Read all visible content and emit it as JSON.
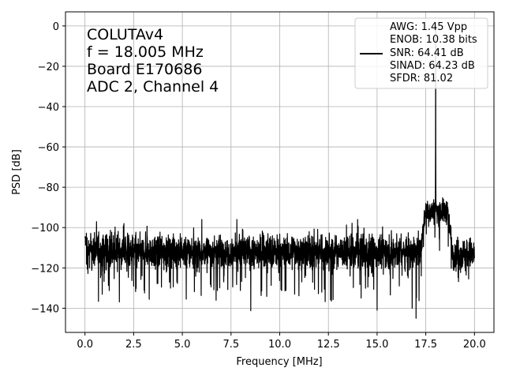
{
  "chart_data": {
    "type": "line",
    "title": "",
    "xlabel": "Frequency [MHz]",
    "ylabel": "PSD [dB]",
    "xlim": [
      -1.0,
      21.0
    ],
    "ylim": [
      -152,
      7
    ],
    "x_ticks": [
      0.0,
      2.5,
      5.0,
      7.5,
      10.0,
      12.5,
      15.0,
      17.5,
      20.0
    ],
    "x_tick_labels": [
      "0.0",
      "2.5",
      "5.0",
      "7.5",
      "10.0",
      "12.5",
      "15.0",
      "17.5",
      "20.0"
    ],
    "y_ticks": [
      0,
      -20,
      -40,
      -60,
      -80,
      -100,
      -120,
      -140
    ],
    "y_tick_labels": [
      "0",
      "−20",
      "−40",
      "−60",
      "−80",
      "−100",
      "−120",
      "−140"
    ],
    "grid": true,
    "line_color": "#000000",
    "annotation": {
      "lines": [
        "COLUTAv4",
        "f = 18.005 MHz",
        "Board E170686",
        "ADC 2, Channel 4"
      ]
    },
    "legend": {
      "placement": "top-right",
      "entries": [
        "AWG: 1.45 Vpp",
        "ENOB: 10.38 bits",
        "SNR: 64.41 dB",
        "SINAD: 64.23 dB",
        "SFDR: 81.02"
      ]
    },
    "series": [
      {
        "description": "noise floor, 0-17.2 MHz",
        "x_range": [
          0.0,
          17.2
        ],
        "floor_mean": -112,
        "floor_max": -103,
        "floor_min": -128,
        "spikes": [
          {
            "x": 2.0,
            "y": -98
          },
          {
            "x": 6.0,
            "y": -96
          },
          {
            "x": 7.8,
            "y": -96
          },
          {
            "x": 14.0,
            "y": -96
          },
          {
            "x": 16.8,
            "y": -140
          },
          {
            "x": 17.0,
            "y": -145
          },
          {
            "x": 15.0,
            "y": -141
          }
        ]
      },
      {
        "description": "signal band plateau",
        "x_range": [
          17.2,
          18.9
        ],
        "level": -92
      },
      {
        "description": "fundamental",
        "x": 18.005,
        "y": -0.5
      },
      {
        "description": "upper noise floor",
        "x_range": [
          18.9,
          20.0
        ],
        "floor_mean": -113
      }
    ]
  }
}
